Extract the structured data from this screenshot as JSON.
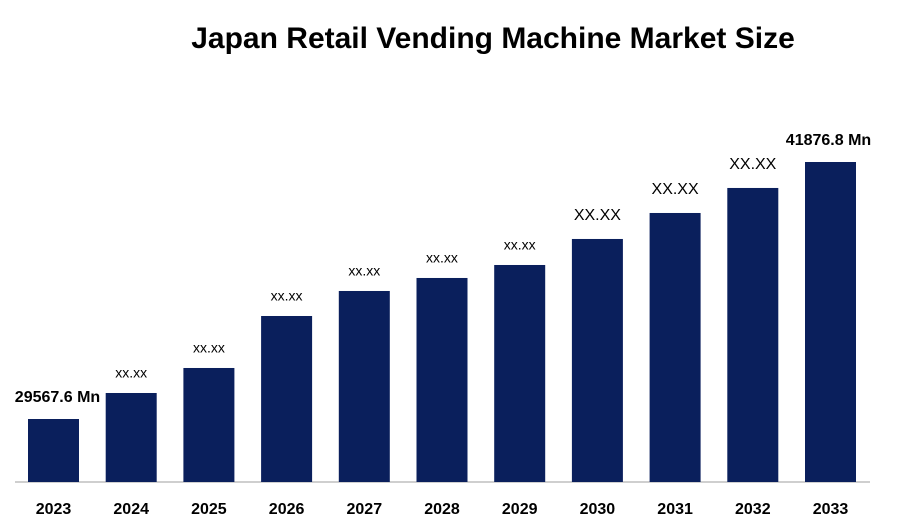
{
  "chart_data": {
    "type": "bar",
    "title": "Japan Retail Vending Machine Market Size",
    "categories": [
      "2023",
      "2024",
      "2025",
      "2026",
      "2027",
      "2028",
      "2029",
      "2030",
      "2031",
      "2032",
      "2033"
    ],
    "values": [
      29567.6,
      30813,
      32011,
      34501,
      35699,
      36322,
      36944,
      38190,
      39435,
      40633,
      41876.8
    ],
    "value_labels": [
      "29567.6 Mn",
      "xx.xx",
      "xx.xx",
      "xx.xx",
      "xx.xx",
      "xx.xx",
      "xx.xx",
      "XX.XX",
      "XX.XX",
      "XX.XX",
      "41876.8 Mn"
    ],
    "color": "#0a1f5c"
  }
}
